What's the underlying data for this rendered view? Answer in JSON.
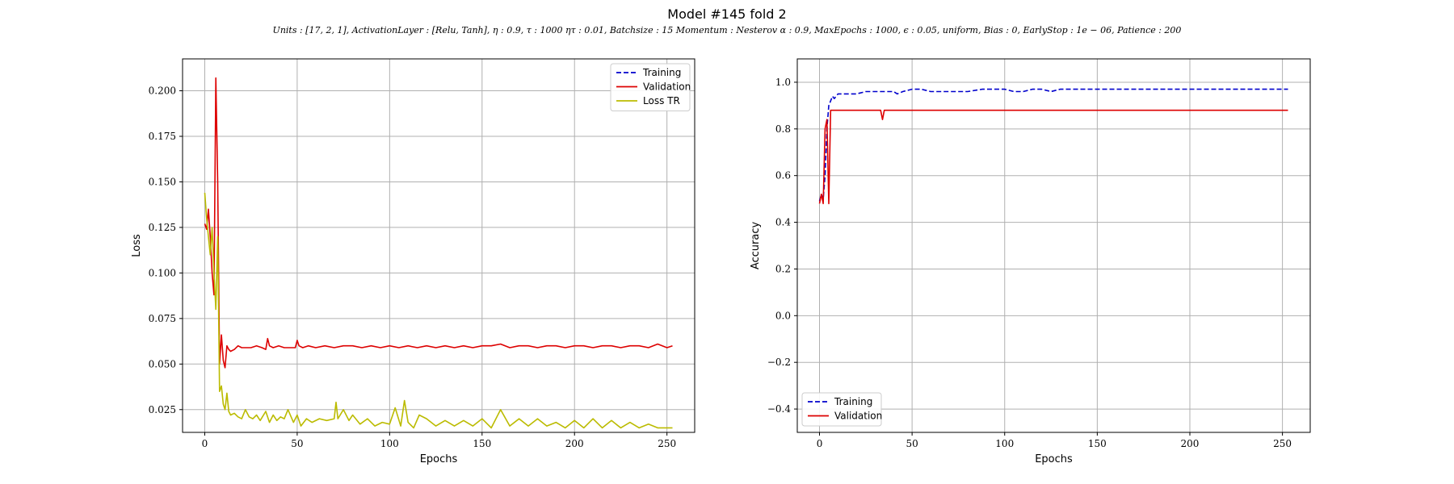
{
  "figure": {
    "title": "Model #145 fold 2",
    "subtitle": "Units : [17, 2, 1], ActivationLayer : [Relu, Tanh], η : 0.9, τ : 1000 ητ : 0.01, Batchsize : 15 Momentum : Nesterov α : 0.9, MaxEpochs : 1000, ϵ : 0.05, uniform, Bias : 0, EarlyStop : 1e − 06, Patience : 200"
  },
  "chart_data": [
    {
      "type": "line",
      "title": "",
      "xlabel": "Epochs",
      "ylabel": "Loss",
      "xlim": [
        -12,
        265
      ],
      "ylim": [
        0.0125,
        0.2175
      ],
      "xticks": [
        0,
        50,
        100,
        150,
        200,
        250
      ],
      "yticks": [
        0.025,
        0.05,
        0.075,
        0.1,
        0.125,
        0.15,
        0.175,
        0.2
      ],
      "ytick_labels": [
        "0.025",
        "0.050",
        "0.075",
        "0.100",
        "0.125",
        "0.150",
        "0.175",
        "0.200"
      ],
      "grid": true,
      "legend": "top-right",
      "series": [
        {
          "name": "Training",
          "color": "#0000cc",
          "style": "dashed",
          "x": [],
          "y": []
        },
        {
          "name": "Validation",
          "color": "#dd0000",
          "style": "solid",
          "x": [
            0,
            1,
            2,
            3,
            4,
            5,
            6,
            7,
            8,
            9,
            10,
            11,
            12,
            13,
            14,
            16,
            18,
            20,
            22,
            25,
            28,
            31,
            33,
            34,
            35,
            37,
            40,
            43,
            46,
            49,
            50,
            51,
            53,
            56,
            60,
            65,
            70,
            75,
            80,
            85,
            90,
            95,
            100,
            105,
            110,
            115,
            120,
            125,
            130,
            135,
            140,
            145,
            150,
            155,
            160,
            165,
            170,
            175,
            180,
            185,
            190,
            195,
            200,
            205,
            210,
            215,
            220,
            225,
            230,
            235,
            240,
            245,
            250,
            253
          ],
          "y": [
            0.127,
            0.124,
            0.135,
            0.12,
            0.1,
            0.088,
            0.207,
            0.15,
            0.05,
            0.066,
            0.052,
            0.048,
            0.06,
            0.058,
            0.057,
            0.058,
            0.06,
            0.059,
            0.059,
            0.059,
            0.06,
            0.059,
            0.058,
            0.064,
            0.06,
            0.059,
            0.06,
            0.059,
            0.059,
            0.059,
            0.063,
            0.06,
            0.059,
            0.06,
            0.059,
            0.06,
            0.059,
            0.06,
            0.06,
            0.059,
            0.06,
            0.059,
            0.06,
            0.059,
            0.06,
            0.059,
            0.06,
            0.059,
            0.06,
            0.059,
            0.06,
            0.059,
            0.06,
            0.06,
            0.061,
            0.059,
            0.06,
            0.06,
            0.059,
            0.06,
            0.06,
            0.059,
            0.06,
            0.06,
            0.059,
            0.06,
            0.06,
            0.059,
            0.06,
            0.06,
            0.059,
            0.061,
            0.059,
            0.06
          ]
        },
        {
          "name": "Loss TR",
          "color": "#bbbb00",
          "style": "solid",
          "x": [
            0,
            1,
            2,
            3,
            4,
            5,
            6,
            7,
            8,
            9,
            10,
            11,
            12,
            13,
            14,
            16,
            18,
            20,
            22,
            24,
            26,
            28,
            30,
            33,
            35,
            37,
            39,
            41,
            43,
            45,
            48,
            50,
            52,
            55,
            58,
            62,
            66,
            70,
            71,
            72,
            75,
            78,
            80,
            84,
            88,
            92,
            96,
            100,
            103,
            106,
            108,
            110,
            113,
            116,
            120,
            125,
            130,
            135,
            140,
            145,
            150,
            155,
            160,
            165,
            170,
            175,
            180,
            185,
            190,
            195,
            200,
            205,
            210,
            215,
            220,
            225,
            230,
            235,
            240,
            245,
            250,
            253
          ],
          "y": [
            0.144,
            0.13,
            0.12,
            0.11,
            0.125,
            0.1,
            0.08,
            0.12,
            0.035,
            0.038,
            0.028,
            0.025,
            0.034,
            0.024,
            0.022,
            0.023,
            0.021,
            0.02,
            0.025,
            0.021,
            0.02,
            0.022,
            0.019,
            0.024,
            0.018,
            0.022,
            0.019,
            0.021,
            0.02,
            0.025,
            0.018,
            0.022,
            0.016,
            0.02,
            0.018,
            0.02,
            0.019,
            0.02,
            0.029,
            0.02,
            0.025,
            0.019,
            0.022,
            0.017,
            0.02,
            0.016,
            0.018,
            0.017,
            0.026,
            0.016,
            0.03,
            0.018,
            0.015,
            0.022,
            0.02,
            0.016,
            0.019,
            0.016,
            0.019,
            0.016,
            0.02,
            0.015,
            0.025,
            0.016,
            0.02,
            0.016,
            0.02,
            0.016,
            0.018,
            0.015,
            0.019,
            0.015,
            0.02,
            0.015,
            0.019,
            0.015,
            0.018,
            0.015,
            0.017,
            0.015,
            0.015,
            0.015
          ]
        }
      ]
    },
    {
      "type": "line",
      "title": "",
      "xlabel": "Epochs",
      "ylabel": "Accuracy",
      "xlim": [
        -12,
        265
      ],
      "ylim": [
        -0.5,
        1.1
      ],
      "xticks": [
        0,
        50,
        100,
        150,
        200,
        250
      ],
      "yticks": [
        -0.4,
        -0.2,
        0.0,
        0.2,
        0.4,
        0.6,
        0.8,
        1.0
      ],
      "ytick_labels": [
        "−0.4",
        "−0.2",
        "0.0",
        "0.2",
        "0.4",
        "0.6",
        "0.8",
        "1.0"
      ],
      "grid": true,
      "legend": "bottom-left",
      "series": [
        {
          "name": "Training",
          "color": "#0000cc",
          "style": "dashed",
          "x": [
            0,
            1,
            2,
            3,
            4,
            5,
            6,
            7,
            8,
            10,
            15,
            20,
            25,
            30,
            35,
            40,
            42,
            45,
            50,
            55,
            60,
            65,
            70,
            80,
            88,
            92,
            95,
            100,
            105,
            110,
            115,
            120,
            125,
            130,
            140,
            150,
            160,
            170,
            180,
            190,
            200,
            210,
            220,
            230,
            240,
            250,
            253
          ],
          "y": [
            0.49,
            0.52,
            0.5,
            0.6,
            0.8,
            0.9,
            0.92,
            0.94,
            0.93,
            0.95,
            0.95,
            0.95,
            0.96,
            0.96,
            0.96,
            0.96,
            0.95,
            0.96,
            0.97,
            0.97,
            0.96,
            0.96,
            0.96,
            0.96,
            0.97,
            0.97,
            0.97,
            0.97,
            0.96,
            0.96,
            0.97,
            0.97,
            0.96,
            0.97,
            0.97,
            0.97,
            0.97,
            0.97,
            0.97,
            0.97,
            0.97,
            0.97,
            0.97,
            0.97,
            0.97,
            0.97,
            0.97
          ]
        },
        {
          "name": "Validation",
          "color": "#dd0000",
          "style": "solid",
          "x": [
            0,
            1,
            2,
            3,
            4,
            5,
            6,
            7,
            8,
            10,
            15,
            20,
            25,
            30,
            33,
            34,
            35,
            36,
            40,
            50,
            60,
            80,
            100,
            125,
            150,
            175,
            200,
            225,
            250,
            253
          ],
          "y": [
            0.48,
            0.52,
            0.48,
            0.8,
            0.84,
            0.48,
            0.88,
            0.88,
            0.88,
            0.88,
            0.88,
            0.88,
            0.88,
            0.88,
            0.88,
            0.84,
            0.88,
            0.88,
            0.88,
            0.88,
            0.88,
            0.88,
            0.88,
            0.88,
            0.88,
            0.88,
            0.88,
            0.88,
            0.88,
            0.88
          ]
        }
      ]
    }
  ]
}
